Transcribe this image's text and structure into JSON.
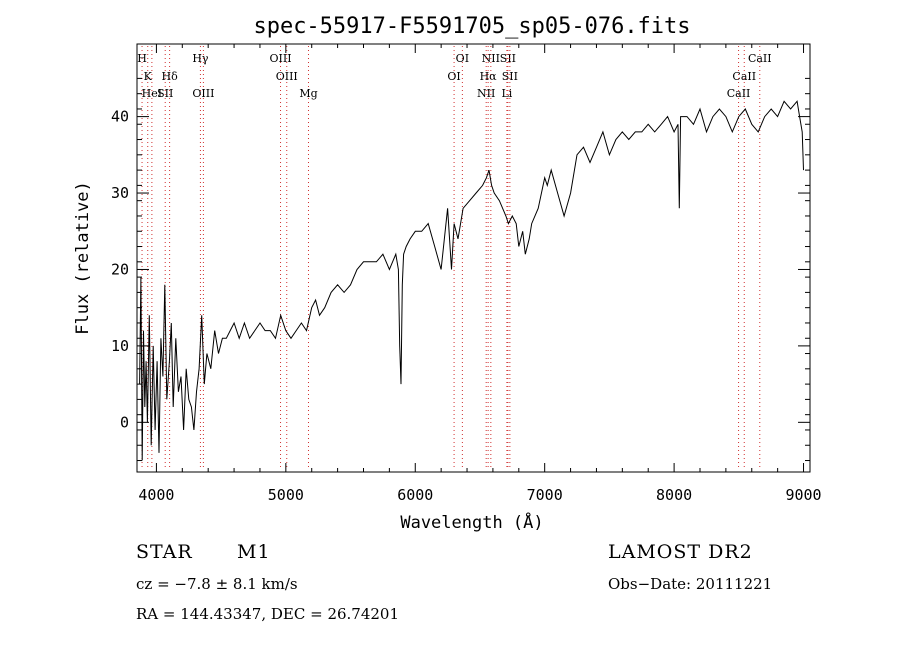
{
  "chart_data": {
    "type": "line",
    "title": "spec-55917-F5591705_sp05-076.fits",
    "xlabel": "Wavelength (Å)",
    "ylabel": "Flux (relative)",
    "xlim": [
      3850,
      9050
    ],
    "ylim": [
      -6.5,
      49.5
    ],
    "xticks": [
      4000,
      5000,
      6000,
      7000,
      8000,
      9000
    ],
    "yticks": [
      0,
      10,
      20,
      30,
      40
    ],
    "grid": false,
    "line_color": "#000000",
    "marker_color": "#d03030",
    "series": [
      {
        "values_x": [
          3870,
          3880,
          3890,
          3900,
          3910,
          3920,
          3930,
          3945,
          3960,
          3975,
          3990,
          4005,
          4020,
          4035,
          4050,
          4065,
          4080,
          4100,
          4115,
          4130,
          4150,
          4170,
          4190,
          4210,
          4230,
          4250,
          4270,
          4290,
          4310,
          4330,
          4350,
          4370,
          4390,
          4420,
          4450,
          4480,
          4510,
          4540,
          4570,
          4600,
          4640,
          4680,
          4720,
          4760,
          4800,
          4840,
          4880,
          4920,
          4960,
          5000,
          5040,
          5080,
          5120,
          5160,
          5200,
          5230,
          5260,
          5300,
          5350,
          5400,
          5450,
          5500,
          5550,
          5600,
          5650,
          5700,
          5750,
          5800,
          5850,
          5870,
          5880,
          5890,
          5900,
          5910,
          5930,
          5960,
          6000,
          6050,
          6100,
          6150,
          6200,
          6250,
          6280,
          6300,
          6330,
          6370,
          6420,
          6470,
          6520,
          6550,
          6570,
          6590,
          6610,
          6650,
          6700,
          6720,
          6750,
          6780,
          6800,
          6830,
          6850,
          6880,
          6900,
          6950,
          7000,
          7020,
          7050,
          7100,
          7150,
          7200,
          7250,
          7300,
          7350,
          7400,
          7450,
          7500,
          7550,
          7600,
          7650,
          7700,
          7750,
          7800,
          7850,
          7900,
          7950,
          8000,
          8030,
          8040,
          8050,
          8100,
          8150,
          8200,
          8250,
          8300,
          8350,
          8400,
          8450,
          8500,
          8550,
          8600,
          8650,
          8700,
          8750,
          8800,
          8850,
          8900,
          8950,
          8970,
          8990,
          9000
        ],
        "values_y": [
          5,
          19,
          -5,
          12,
          2,
          8,
          0,
          14,
          -3,
          10,
          -1,
          8,
          -4,
          11,
          6,
          18,
          3,
          8,
          13,
          2,
          11,
          4,
          6,
          -1,
          7,
          3,
          2,
          -1,
          4,
          7,
          14,
          5,
          9,
          7,
          12,
          9,
          11,
          11,
          12,
          13,
          11,
          13,
          11,
          12,
          13,
          12,
          12,
          11,
          14,
          12,
          11,
          12,
          13,
          12,
          15,
          16,
          14,
          15,
          17,
          18,
          17,
          18,
          20,
          21,
          21,
          21,
          22,
          20,
          22,
          20,
          10,
          5,
          18,
          22,
          23,
          24,
          25,
          25,
          26,
          23,
          20,
          28,
          20,
          26,
          24,
          28,
          29,
          30,
          31,
          32,
          33,
          31,
          30,
          29,
          27,
          26,
          27,
          26,
          23,
          25,
          22,
          24,
          26,
          28,
          32,
          31,
          33,
          30,
          27,
          30,
          35,
          36,
          34,
          36,
          38,
          35,
          37,
          38,
          37,
          38,
          38,
          39,
          38,
          39,
          40,
          38,
          39,
          28,
          40,
          40,
          39,
          41,
          38,
          40,
          41,
          40,
          38,
          40,
          41,
          39,
          38,
          40,
          41,
          40,
          42,
          41,
          42,
          40,
          38,
          33
        ]
      }
    ],
    "line_markers": [
      {
        "name": "H",
        "x": 3889,
        "row": 0
      },
      {
        "name": "K",
        "x": 3933,
        "row": 1
      },
      {
        "name": "HeI",
        "x": 3965,
        "row": 2
      },
      {
        "name": "Hδ",
        "x": 4102,
        "row": 1
      },
      {
        "name": "SII",
        "x": 4068,
        "row": 2
      },
      {
        "name": "Hγ",
        "x": 4340,
        "row": 0
      },
      {
        "name": "OIII",
        "x": 4363,
        "row": 2
      },
      {
        "name": "OIII",
        "x": 4959,
        "row": 0
      },
      {
        "name": "OIII",
        "x": 5007,
        "row": 1
      },
      {
        "name": "Mg",
        "x": 5175,
        "row": 2
      },
      {
        "name": "OI",
        "x": 6364,
        "row": 0
      },
      {
        "name": "OI",
        "x": 6300,
        "row": 1
      },
      {
        "name": "NII",
        "x": 6584,
        "row": 0
      },
      {
        "name": "SII",
        "x": 6716,
        "row": 0
      },
      {
        "name": "Hα",
        "x": 6563,
        "row": 1
      },
      {
        "name": "SII",
        "x": 6731,
        "row": 1
      },
      {
        "name": "NII",
        "x": 6548,
        "row": 2
      },
      {
        "name": "Li",
        "x": 6708,
        "row": 2
      },
      {
        "name": "CaII",
        "x": 8662,
        "row": 0
      },
      {
        "name": "CaII",
        "x": 8542,
        "row": 1
      },
      {
        "name": "CaII",
        "x": 8498,
        "row": 2
      }
    ]
  },
  "info": {
    "object_class": "STAR",
    "subclass": "M1",
    "survey": "LAMOST DR2",
    "cz": "cz = −7.8 ± 8.1 km/s",
    "obs_date": "Obs−Date: 20111221",
    "coords": "RA = 144.43347, DEC =  26.74201"
  }
}
